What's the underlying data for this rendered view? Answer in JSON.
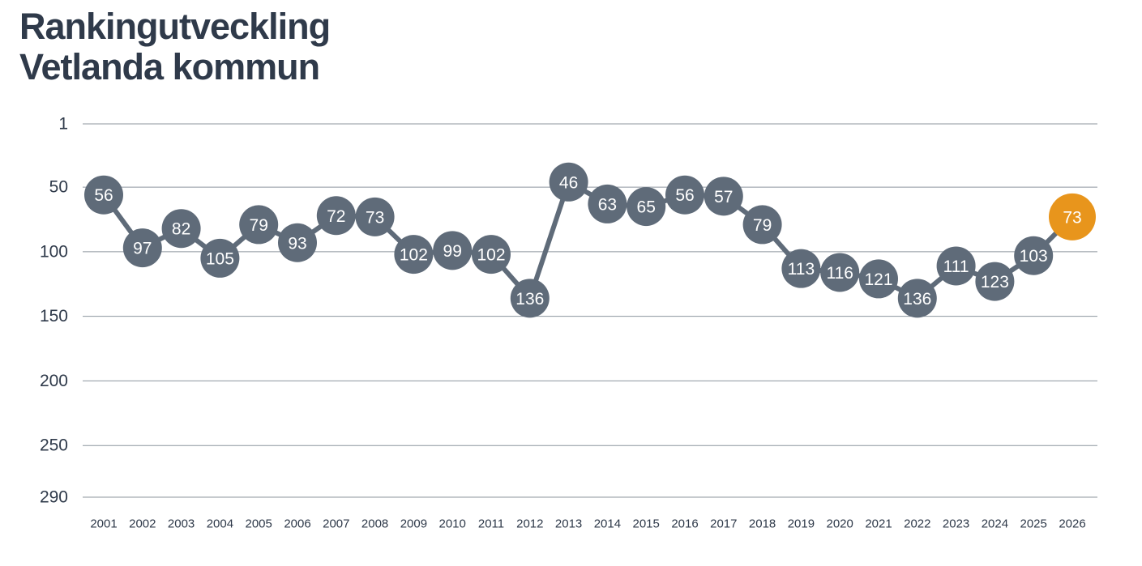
{
  "header": {
    "title_line1": "Rankingutveckling",
    "title_line2": "Vetlanda kommun"
  },
  "colors": {
    "title": "#2f3a4a",
    "series": "#5f6b79",
    "highlight": "#e8951c",
    "grid": "#8c959e",
    "axis_text": "#2f3a4a"
  },
  "chart_data": {
    "type": "line",
    "title": "Rankingutveckling Vetlanda kommun",
    "xlabel": "",
    "ylabel": "",
    "y_inverted": true,
    "ylim": [
      1,
      290
    ],
    "y_ticks": [
      1,
      50,
      100,
      150,
      200,
      250,
      290
    ],
    "grid": true,
    "x": [
      "2001",
      "2002",
      "2003",
      "2004",
      "2005",
      "2006",
      "2007",
      "2008",
      "2009",
      "2010",
      "2011",
      "2012",
      "2013",
      "2014",
      "2015",
      "2016",
      "2017",
      "2018",
      "2019",
      "2020",
      "2021",
      "2022",
      "2023",
      "2024",
      "2025",
      "2026"
    ],
    "series": [
      {
        "values": [
          56,
          97,
          82,
          105,
          79,
          93,
          72,
          73,
          102,
          99,
          102,
          136,
          46,
          63,
          65,
          56,
          57,
          79,
          113,
          116,
          121,
          136,
          111,
          123,
          103,
          73
        ]
      }
    ],
    "highlight_index": 25
  }
}
